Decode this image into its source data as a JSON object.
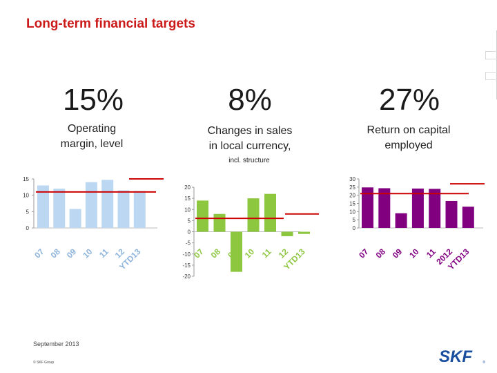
{
  "title": "Long-term financial targets",
  "colors": {
    "title": "#cc1a1a",
    "target": "#cc0000",
    "light_blue": "#bcd7f2",
    "green": "#8dc63f",
    "purple": "#800080",
    "logo_blue": "#1a4fa0"
  },
  "targets": [
    {
      "value": "15%",
      "label_line1": "Operating",
      "label_line2": "margin, level",
      "note": ""
    },
    {
      "value": "8%",
      "label_line1": "Changes in sales",
      "label_line2": "in local currency,",
      "note": "incl. structure"
    },
    {
      "value": "27%",
      "label_line1": "Return on capital",
      "label_line2": "employed",
      "note": ""
    }
  ],
  "chart_data": [
    {
      "type": "bar",
      "categories": [
        "07",
        "08",
        "09",
        "10",
        "11",
        "12",
        "YTD13"
      ],
      "values": [
        13,
        12,
        5.8,
        14,
        14.7,
        11.5,
        11.3
      ],
      "ylim": [
        0,
        15
      ],
      "yticks": [
        0,
        5,
        10,
        15
      ],
      "reference_lines": [
        11,
        15
      ],
      "color": "#bcd7f2"
    },
    {
      "type": "bar",
      "categories": [
        "07",
        "08",
        "09",
        "10",
        "11",
        "12",
        "YTD13"
      ],
      "values": [
        14,
        8,
        -18,
        15,
        17,
        -2,
        -1
      ],
      "ylim": [
        -20,
        20
      ],
      "yticks": [
        20,
        15,
        10,
        5,
        0,
        -5,
        -10,
        -15,
        -20
      ],
      "reference_lines": [
        6,
        8
      ],
      "color": "#8dc63f"
    },
    {
      "type": "bar",
      "categories": [
        "07",
        "08",
        "09",
        "10",
        "11",
        "2012",
        "YTD13"
      ],
      "values": [
        24.8,
        24.3,
        9,
        24.1,
        23.9,
        16.5,
        13
      ],
      "ylim": [
        0,
        30
      ],
      "yticks": [
        30,
        25,
        20,
        15,
        10,
        5,
        0
      ],
      "reference_lines": [
        21,
        27
      ],
      "color": "#800080"
    }
  ],
  "footer": {
    "date": "September 2013",
    "copyright": "© SKF Group"
  },
  "logo_text": "SKF"
}
